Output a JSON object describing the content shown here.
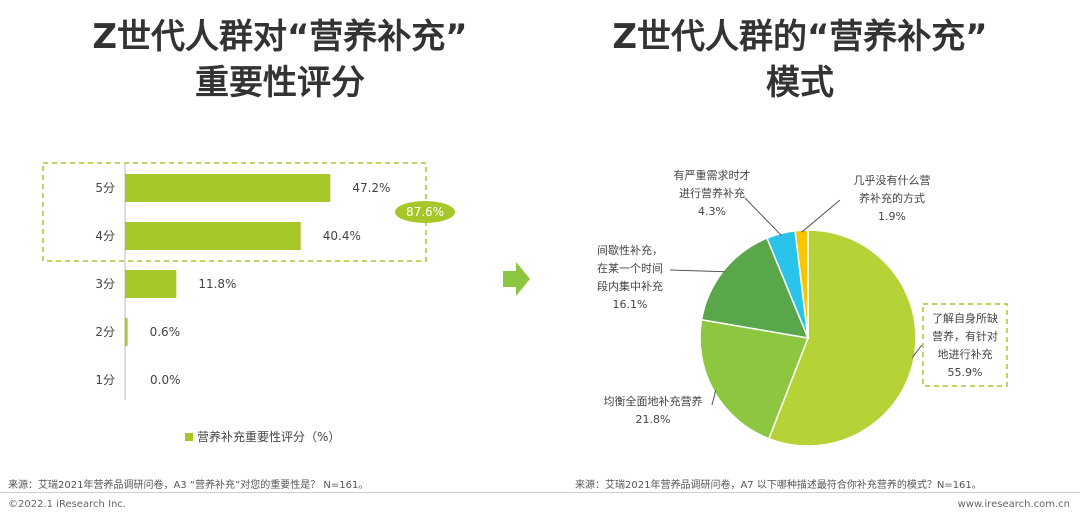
{
  "title_left": {
    "line1": "Z世代人群对“营养补充”",
    "line2": "重要性评分"
  },
  "title_right": {
    "line1": "Z世代人群的“营养补充”",
    "line2": "模式"
  },
  "chart_data": [
    {
      "type": "bar",
      "orientation": "horizontal",
      "categories": [
        "5分",
        "4分",
        "3分",
        "2分",
        "1分"
      ],
      "values": [
        47.2,
        40.4,
        11.8,
        0.6,
        0.0
      ],
      "value_labels": [
        "47.2%",
        "40.4%",
        "11.8%",
        "0.6%",
        "0.0%"
      ],
      "legend": "营养补充重要性评分（%）",
      "legend_position": "bottom",
      "highlight": {
        "categories": [
          "5分",
          "4分"
        ],
        "label": "87.6%"
      },
      "xlim": [
        0,
        100
      ],
      "color": "#a6c728",
      "grid": false
    },
    {
      "type": "pie",
      "slices": [
        {
          "label": "了解自身所缺营养，有针对地进行补充",
          "label_lines": [
            "了解自身所缺",
            "营养，有针对",
            "地进行补充"
          ],
          "value": 55.9,
          "value_label": "55.9%",
          "color": "#b5d236"
        },
        {
          "label": "均衡全面地补充营养",
          "label_lines": [
            "均衡全面地补充营养"
          ],
          "value": 21.8,
          "value_label": "21.8%",
          "color": "#8dc63f"
        },
        {
          "label": "间歇性补充，在某一个时间段内集中补充",
          "label_lines": [
            "间歇性补充，",
            "在某一个时间",
            "段内集中补充"
          ],
          "value": 16.1,
          "value_label": "16.1%",
          "color": "#5aa64a"
        },
        {
          "label": "有严重需求时才进行营养补充",
          "label_lines": [
            "有严重需求时才",
            "进行营养补充"
          ],
          "value": 4.3,
          "value_label": "4.3%",
          "color": "#2ac4ea"
        },
        {
          "label": "几乎没有什么营养补充的方式",
          "label_lines": [
            "几乎没有什么营",
            "养补充的方式"
          ],
          "value": 1.9,
          "value_label": "1.9%",
          "color": "#f7c600"
        }
      ]
    }
  ],
  "arrow_color": "#8cc63f",
  "source_left": "来源：艾瑞2021年营养品调研问卷，A3 “营养补充”对您的重要性是？ N=161。",
  "source_right": "来源：艾瑞2021年营养品调研问卷，A7 以下哪种描述最符合你补充营养的模式？N=161。",
  "footer_left": "©2022.1 iResearch Inc.",
  "footer_right": "www.iresearch.com.cn"
}
